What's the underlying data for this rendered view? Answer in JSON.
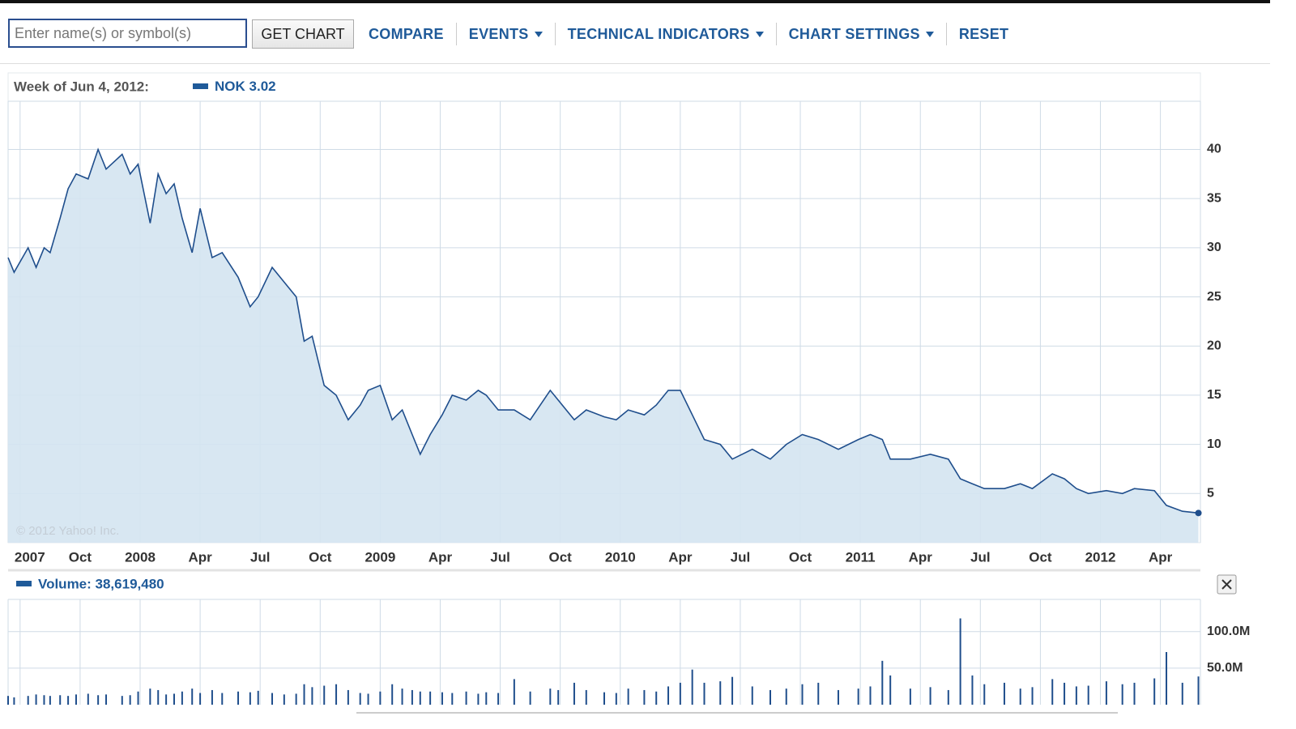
{
  "toolbar": {
    "placeholder": "Enter name(s) or symbol(s)",
    "button": "GET CHART",
    "links": [
      "COMPARE",
      "EVENTS",
      "TECHNICAL INDICATORS",
      "CHART SETTINGS",
      "RESET"
    ]
  },
  "chart_data": [
    {
      "type": "line",
      "header": "Week of Jun 4, 2012:",
      "legend": "NOK",
      "color": "#1f4e8c",
      "fill": "#d4e4f1",
      "annotation": "© 2012 Yahoo! Inc.",
      "x": [
        5.4,
        5.7,
        6.4,
        6.8,
        7.2,
        7.5,
        8.0,
        8.4,
        8.8,
        9.4,
        9.9,
        10.3,
        11.1,
        11.5,
        11.9,
        12.5,
        12.9,
        13.3,
        13.7,
        14.1,
        14.6,
        15.0,
        15.6,
        16.1,
        16.9,
        17.5,
        17.9,
        18.6,
        19.2,
        19.8,
        20.2,
        20.6,
        21.2,
        21.8,
        22.4,
        23.0,
        23.4,
        24.0,
        24.6,
        25.1,
        25.6,
        26.0,
        26.5,
        27.1,
        27.6,
        28.3,
        28.9,
        29.3,
        29.9,
        30.7,
        31.5,
        32.5,
        32.9,
        33.7,
        34.3,
        35.2,
        35.8,
        36.4,
        37.2,
        37.8,
        38.4,
        39.0,
        39.6,
        40.2,
        41.0,
        41.6,
        42.6,
        43.5,
        44.3,
        45.1,
        45.9,
        46.9,
        47.9,
        48.5,
        49.1,
        49.5,
        50.5,
        51.5,
        52.4,
        53.0,
        53.6,
        54.2,
        55.2,
        56.0,
        56.6,
        57.6,
        58.2,
        58.8,
        59.4,
        60.3,
        61.1,
        61.7,
        62.7,
        63.3,
        64.1,
        64.9
      ],
      "values": [
        29,
        27.5,
        30,
        28,
        30,
        29.5,
        33,
        36,
        37.5,
        37,
        40,
        38,
        39.5,
        37.5,
        38.5,
        32.5,
        37.5,
        35.5,
        36.5,
        33,
        29.5,
        34,
        29,
        29.5,
        27,
        24,
        25,
        28,
        26.5,
        25,
        20.5,
        21,
        16,
        15,
        12.5,
        14,
        15.5,
        16,
        12.5,
        13.5,
        11,
        9,
        11,
        13,
        15,
        14.5,
        15.5,
        15,
        13.5,
        13.5,
        12.5,
        15.5,
        14.5,
        12.5,
        13.5,
        12.8,
        12.5,
        13.5,
        13,
        14,
        15.5,
        15.5,
        13,
        10.5,
        10,
        8.5,
        9.5,
        8.5,
        10,
        11,
        10.5,
        9.5,
        10.5,
        11,
        10.5,
        8.5,
        8.5,
        9,
        8.5,
        6.5,
        6,
        5.5,
        5.5,
        6,
        5.5,
        7,
        6.5,
        5.5,
        5,
        5.3,
        5,
        5.5,
        5.3,
        3.8,
        3.2,
        3.02
      ],
      "xlim": [
        5.4,
        65.0
      ],
      "xticks": [
        {
          "value": 6,
          "label": "2007"
        },
        {
          "value": 9,
          "label": "Oct"
        },
        {
          "value": 12,
          "label": "2008"
        },
        {
          "value": 15,
          "label": "Apr"
        },
        {
          "value": 18,
          "label": "Jul"
        },
        {
          "value": 21,
          "label": "Oct"
        },
        {
          "value": 24,
          "label": "2009"
        },
        {
          "value": 27,
          "label": "Apr"
        },
        {
          "value": 30,
          "label": "Jul"
        },
        {
          "value": 33,
          "label": "Oct"
        },
        {
          "value": 36,
          "label": "2010"
        },
        {
          "value": 39,
          "label": "Apr"
        },
        {
          "value": 42,
          "label": "Jul"
        },
        {
          "value": 45,
          "label": "Oct"
        },
        {
          "value": 48,
          "label": "2011"
        },
        {
          "value": 51,
          "label": "Apr"
        },
        {
          "value": 54,
          "label": "Jul"
        },
        {
          "value": 57,
          "label": "Oct"
        },
        {
          "value": 60,
          "label": "2012"
        },
        {
          "value": 63,
          "label": "Apr"
        }
      ],
      "ylim": [
        0,
        44.9
      ],
      "yticks": [
        5,
        10,
        15,
        20,
        25,
        30,
        35,
        40
      ],
      "grid": true
    },
    {
      "type": "bar",
      "title": "Volume: 38,619,480",
      "color": "#1f4e8c",
      "x": [
        5.4,
        5.7,
        6.4,
        6.8,
        7.2,
        7.5,
        8.0,
        8.4,
        8.8,
        9.4,
        9.9,
        10.3,
        11.1,
        11.5,
        11.9,
        12.5,
        12.9,
        13.3,
        13.7,
        14.1,
        14.6,
        15.0,
        15.6,
        16.1,
        16.9,
        17.5,
        17.9,
        18.6,
        19.2,
        19.8,
        20.2,
        20.6,
        21.2,
        21.8,
        22.4,
        23.0,
        23.4,
        24.0,
        24.6,
        25.1,
        25.6,
        26.0,
        26.5,
        27.1,
        27.6,
        28.3,
        28.9,
        29.3,
        29.9,
        30.7,
        31.5,
        32.5,
        32.9,
        33.7,
        34.3,
        35.2,
        35.8,
        36.4,
        37.2,
        37.8,
        38.4,
        39.0,
        39.6,
        40.2,
        41.0,
        41.6,
        42.6,
        43.5,
        44.3,
        45.1,
        45.9,
        46.9,
        47.9,
        48.5,
        49.1,
        49.5,
        50.5,
        51.5,
        52.4,
        53.0,
        53.6,
        54.2,
        55.2,
        56.0,
        56.6,
        57.6,
        58.2,
        58.8,
        59.4,
        60.3,
        61.1,
        61.7,
        62.7,
        63.3,
        64.1,
        64.9
      ],
      "values": [
        12,
        10,
        12,
        14,
        13,
        12,
        13,
        12,
        14,
        15,
        13,
        14,
        12,
        13,
        18,
        22,
        20,
        14,
        15,
        18,
        22,
        16,
        20,
        16,
        18,
        17,
        19,
        16,
        14,
        15,
        28,
        24,
        26,
        28,
        20,
        16,
        15,
        18,
        28,
        22,
        20,
        18,
        18,
        17,
        16,
        18,
        15,
        17,
        16,
        35,
        18,
        22,
        20,
        30,
        20,
        17,
        16,
        22,
        20,
        18,
        25,
        30,
        48,
        30,
        32,
        38,
        25,
        20,
        22,
        28,
        30,
        20,
        22,
        25,
        60,
        40,
        22,
        24,
        20,
        118,
        40,
        28,
        30,
        22,
        24,
        35,
        30,
        25,
        26,
        32,
        28,
        30,
        36,
        72,
        30,
        38.6
      ],
      "xlim": [
        5.4,
        65.0
      ],
      "ylim": [
        0,
        144
      ],
      "yticks": [
        {
          "value": 50,
          "label": "50.0M"
        },
        {
          "value": 100,
          "label": "100.0M"
        }
      ],
      "grid": true
    }
  ]
}
